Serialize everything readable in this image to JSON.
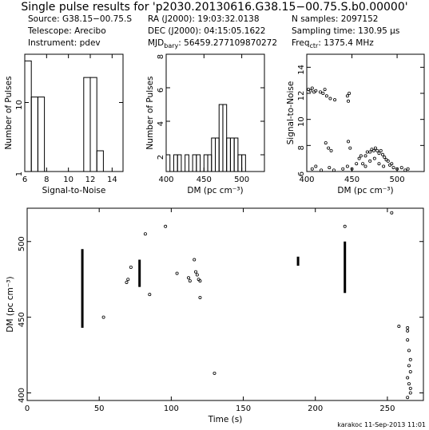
{
  "title": "Single pulse results for 'p2030.20130616.G38.15−00.75.S.b0.00000'",
  "header": {
    "source": "Source: G38.15−00.75.S",
    "telescope": "Telescope: Arecibo",
    "instrument": "Instrument: pdev",
    "ra": "RA (J2000):        19:03:32.0138",
    "dec": "DEC (J2000):    04:15:05.1622",
    "mjd_label": "MJD",
    "mjd_sub": "bary",
    "mjd_value": ":   56459.277109870272",
    "nsamples": "N samples:  2097152",
    "sampling": "Sampling time:  130.95 µs",
    "freq_label": "Freq",
    "freq_sub": "ctr",
    "freq_value": ":  1375.4 MHz"
  },
  "footer": "karakoc 11-Sep-2013 11:01",
  "chart_data": [
    {
      "type": "bar",
      "name": "snr-histogram",
      "xlabel": "Signal-to-Noise",
      "ylabel": "Number of Pulses",
      "xlim": [
        6,
        15
      ],
      "ylim": [
        1,
        50
      ],
      "log_y": true,
      "xticks": [
        6,
        8,
        10,
        12,
        14
      ],
      "yticks": [
        1,
        10
      ],
      "bin_edges": [
        6,
        6.6,
        7.2,
        7.8,
        8.4,
        9.0,
        9.6,
        10.2,
        10.8,
        11.4,
        12.0,
        12.6,
        13.2
      ],
      "values": [
        40,
        12,
        12,
        1,
        1,
        1,
        1,
        1,
        1,
        23,
        23,
        2
      ]
    },
    {
      "type": "bar",
      "name": "dm-histogram",
      "xlabel": "DM (pc cm⁻³)",
      "ylabel": "Number of Pulses",
      "xlim": [
        400,
        530
      ],
      "ylim": [
        1,
        8
      ],
      "xticks": [
        400,
        450,
        500
      ],
      "yticks": [
        2,
        4,
        6,
        8
      ],
      "bin_edges": [
        400,
        405,
        410,
        415,
        420,
        425,
        430,
        435,
        440,
        445,
        450,
        455,
        460,
        465,
        470,
        475,
        480,
        485,
        490,
        495,
        500,
        505,
        510,
        515
      ],
      "values": [
        2,
        1,
        2,
        2,
        1,
        2,
        1,
        2,
        2,
        1,
        2,
        2,
        3,
        3,
        5,
        5,
        3,
        3,
        3,
        2,
        2,
        1,
        1
      ]
    },
    {
      "type": "scatter",
      "name": "snr-vs-dm",
      "xlabel": "DM (pc cm⁻³)",
      "ylabel": "Signal-to-Noise",
      "xlim": [
        400,
        530
      ],
      "ylim": [
        6,
        15
      ],
      "xticks": [
        400,
        450,
        500
      ],
      "yticks": [
        6,
        8,
        10,
        12,
        14
      ],
      "points": [
        [
          402,
          12.3
        ],
        [
          404,
          12.2
        ],
        [
          406,
          12.4
        ],
        [
          408,
          12.1
        ],
        [
          410,
          12.2
        ],
        [
          415,
          12.1
        ],
        [
          418,
          12.0
        ],
        [
          420,
          12.3
        ],
        [
          422,
          11.8
        ],
        [
          426,
          11.6
        ],
        [
          431,
          11.5
        ],
        [
          445,
          11.8
        ],
        [
          446,
          11.4
        ],
        [
          447,
          12.0
        ],
        [
          421,
          8.2
        ],
        [
          424,
          7.8
        ],
        [
          427,
          7.6
        ],
        [
          446,
          8.3
        ],
        [
          448,
          7.8
        ],
        [
          406,
          6.2
        ],
        [
          410,
          6.4
        ],
        [
          416,
          6.1
        ],
        [
          425,
          6.3
        ],
        [
          430,
          6.1
        ],
        [
          440,
          6.2
        ],
        [
          445,
          6.4
        ],
        [
          450,
          6.2
        ],
        [
          455,
          6.6
        ],
        [
          458,
          7.0
        ],
        [
          460,
          7.2
        ],
        [
          462,
          6.6
        ],
        [
          465,
          7.2
        ],
        [
          467,
          7.5
        ],
        [
          470,
          7.5
        ],
        [
          472,
          7.7
        ],
        [
          474,
          7.6
        ],
        [
          476,
          7.8
        ],
        [
          478,
          7.6
        ],
        [
          480,
          7.4
        ],
        [
          482,
          7.6
        ],
        [
          484,
          7.3
        ],
        [
          486,
          7.1
        ],
        [
          488,
          6.9
        ],
        [
          490,
          6.8
        ],
        [
          492,
          6.5
        ],
        [
          494,
          6.6
        ],
        [
          496,
          6.3
        ],
        [
          500,
          6.2
        ],
        [
          505,
          6.3
        ],
        [
          509,
          6.1
        ],
        [
          512,
          6.2
        ],
        [
          470,
          6.8
        ],
        [
          475,
          7.0
        ],
        [
          480,
          6.6
        ],
        [
          465,
          6.4
        ],
        [
          485,
          6.4
        ]
      ]
    },
    {
      "type": "scatter",
      "name": "dm-vs-time",
      "xlabel": "Time (s)",
      "ylabel": "DM (pc cm⁻³)",
      "xlim": [
        0,
        275
      ],
      "ylim": [
        395,
        522
      ],
      "xticks": [
        0,
        50,
        100,
        150,
        200,
        250
      ],
      "yticks": [
        400,
        450,
        500
      ],
      "vertical_streaks": [
        {
          "t": 38.3,
          "dm_lo": 443,
          "dm_hi": 495
        },
        {
          "t": 78.0,
          "dm_lo": 470,
          "dm_hi": 488
        },
        {
          "t": 188.0,
          "dm_lo": 484,
          "dm_hi": 490
        },
        {
          "t": 220.5,
          "dm_lo": 466,
          "dm_hi": 500
        }
      ],
      "points": [
        [
          53,
          450
        ],
        [
          69,
          473
        ],
        [
          70,
          475
        ],
        [
          72,
          483
        ],
        [
          82,
          505
        ],
        [
          85,
          465
        ],
        [
          96,
          510
        ],
        [
          104,
          479
        ],
        [
          112,
          476
        ],
        [
          113,
          474
        ],
        [
          116,
          488
        ],
        [
          117,
          480
        ],
        [
          118,
          478
        ],
        [
          119,
          475
        ],
        [
          120,
          474
        ],
        [
          120,
          463
        ],
        [
          130,
          413
        ],
        [
          220.5,
          510
        ],
        [
          253,
          519
        ],
        [
          258,
          444
        ],
        [
          264,
          443
        ],
        [
          264,
          441
        ],
        [
          264,
          435
        ],
        [
          265,
          428
        ],
        [
          266,
          422
        ],
        [
          265,
          418
        ],
        [
          266,
          414
        ],
        [
          264,
          410
        ],
        [
          265,
          406
        ],
        [
          266,
          403
        ],
        [
          266,
          400
        ],
        [
          264,
          397
        ]
      ]
    }
  ]
}
